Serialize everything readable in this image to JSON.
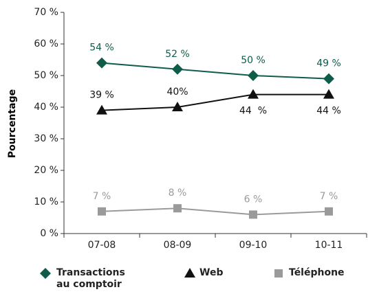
{
  "chart_data": {
    "type": "line",
    "y_label": "Pourcentage",
    "categories": [
      "07-08",
      "08-09",
      "09-10",
      "10-11"
    ],
    "series": [
      {
        "name": "Transactions au comptoir",
        "color": "#0e5c4a",
        "marker": "diamond",
        "values": [
          54,
          52,
          50,
          49
        ],
        "value_labels": [
          "54 %",
          "52 %",
          "50 %",
          "49 %"
        ]
      },
      {
        "name": "Web",
        "color": "#111111",
        "marker": "triangle",
        "values": [
          39,
          40,
          44,
          44
        ],
        "value_labels": [
          "39 %",
          "40%",
          "44  %",
          "44 %"
        ]
      },
      {
        "name": "Téléphone",
        "color": "#9a9a9a",
        "marker": "square",
        "values": [
          7,
          8,
          6,
          7
        ],
        "value_labels": [
          "7 %",
          "8 %",
          "6 %",
          "7 %"
        ]
      }
    ],
    "ylim": [
      0,
      70
    ],
    "yticks": [
      {
        "value": 0,
        "label": "0 %"
      },
      {
        "value": 10,
        "label": "10 %"
      },
      {
        "value": 20,
        "label": "20 %"
      },
      {
        "value": 30,
        "label": "30 %"
      },
      {
        "value": 40,
        "label": "40 %"
      },
      {
        "value": 50,
        "label": "50 %"
      },
      {
        "value": 60,
        "label": "60 %"
      },
      {
        "value": 70,
        "label": "70 %"
      }
    ],
    "grid": false,
    "legend": "bottom"
  }
}
